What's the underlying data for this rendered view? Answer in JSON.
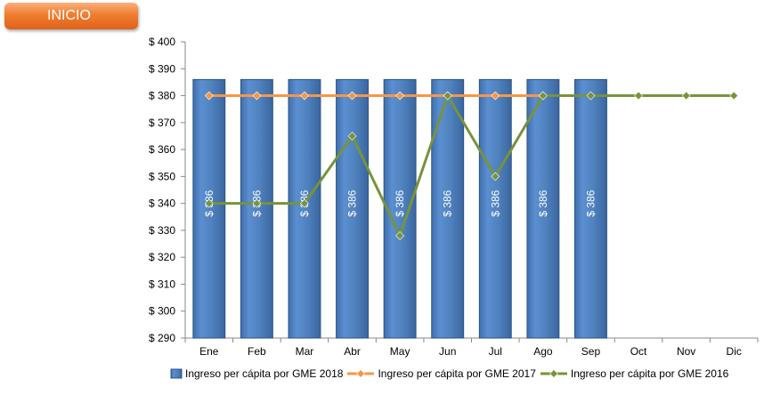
{
  "inicio_button": {
    "label": "INICIO"
  },
  "chart_data": {
    "type": "bar",
    "title": "",
    "xlabel": "",
    "ylabel": "",
    "categories": [
      "Ene",
      "Feb",
      "Mar",
      "Abr",
      "May",
      "Jun",
      "Jul",
      "Ago",
      "Sep",
      "Oct",
      "Nov",
      "Dic"
    ],
    "ylim": [
      290,
      400
    ],
    "yticks": [
      290,
      300,
      310,
      320,
      330,
      340,
      350,
      360,
      370,
      380,
      390,
      400
    ],
    "ytick_prefix": "$ ",
    "bar_label_prefix": "$ ",
    "legend_position": "bottom",
    "grid": false,
    "series": [
      {
        "name": "Ingreso per cápita por GME 2018",
        "kind": "bar",
        "color": "#4f81bd",
        "values": [
          386,
          386,
          386,
          386,
          386,
          386,
          386,
          386,
          386,
          null,
          null,
          null
        ]
      },
      {
        "name": "Ingreso per cápita por GME 2017",
        "kind": "line",
        "color": "#f79646",
        "values": [
          380,
          380,
          380,
          380,
          380,
          380,
          380,
          380,
          null,
          null,
          null,
          null
        ]
      },
      {
        "name": "Ingreso per cápita por GME 2016",
        "kind": "line",
        "color": "#77933c",
        "values": [
          340,
          340,
          340,
          365,
          328,
          380,
          350,
          380,
          380,
          380,
          380,
          380
        ]
      }
    ]
  }
}
